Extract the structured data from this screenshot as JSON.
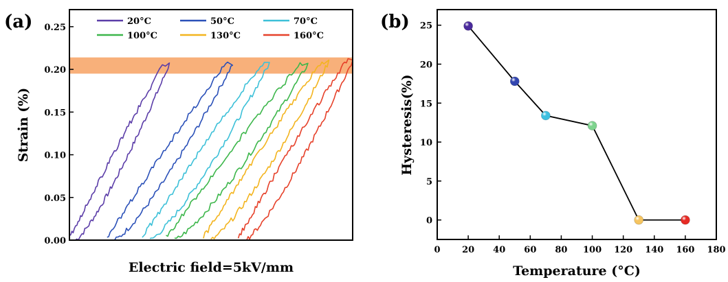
{
  "figure": {
    "panel_a_label": "(a)",
    "panel_b_label": "(b)"
  },
  "chart_data": [
    {
      "type": "line",
      "panel": "(a)",
      "xlabel": "Electric field=5kV/mm",
      "ylabel": "Strain (%)",
      "ylim": [
        0,
        0.27
      ],
      "yticks": [
        "0.00",
        "0.05",
        "0.10",
        "0.15",
        "0.20",
        "0.25"
      ],
      "x_tick_labels": false,
      "highlight_band": {
        "y_range": [
          0.195,
          0.214
        ],
        "color": "#f8b07a"
      },
      "legend_position": "top",
      "series": [
        {
          "name": "20°C",
          "color": "#5b3da8",
          "x_start": 0.0,
          "x_peak": 0.353,
          "peak": 0.206
        },
        {
          "name": "50°C",
          "color": "#2a50b8",
          "x_start": 0.133,
          "x_peak": 0.576,
          "peak": 0.206
        },
        {
          "name": "70°C",
          "color": "#3cc0d8",
          "x_start": 0.257,
          "x_peak": 0.706,
          "peak": 0.207
        },
        {
          "name": "100°C",
          "color": "#3cb64a",
          "x_start": 0.341,
          "x_peak": 0.842,
          "peak": 0.206
        },
        {
          "name": "130°C",
          "color": "#f3b41e",
          "x_start": 0.473,
          "x_peak": 0.916,
          "peak": 0.209
        },
        {
          "name": "160°C",
          "color": "#e6412a",
          "x_start": 0.596,
          "x_peak": 1.0,
          "peak": 0.21
        }
      ]
    },
    {
      "type": "line",
      "panel": "(b)",
      "xlabel": "Temperature (°C)",
      "ylabel": "Hysteresis(%)",
      "xlim": [
        0,
        180
      ],
      "ylim": [
        -2.5,
        27
      ],
      "xticks": [
        "0",
        "20",
        "40",
        "60",
        "80",
        "100",
        "120",
        "140",
        "160",
        "180"
      ],
      "yticks": [
        "0",
        "5",
        "10",
        "15",
        "20",
        "25"
      ],
      "x": [
        20,
        50,
        70,
        100,
        130,
        160
      ],
      "y": [
        24.9,
        17.8,
        13.4,
        12.1,
        0,
        0
      ],
      "marker_colors": [
        "#4a2a9c",
        "#3346b0",
        "#3ec0e0",
        "#7ed38e",
        "#f5c460",
        "#e62b25"
      ]
    }
  ]
}
